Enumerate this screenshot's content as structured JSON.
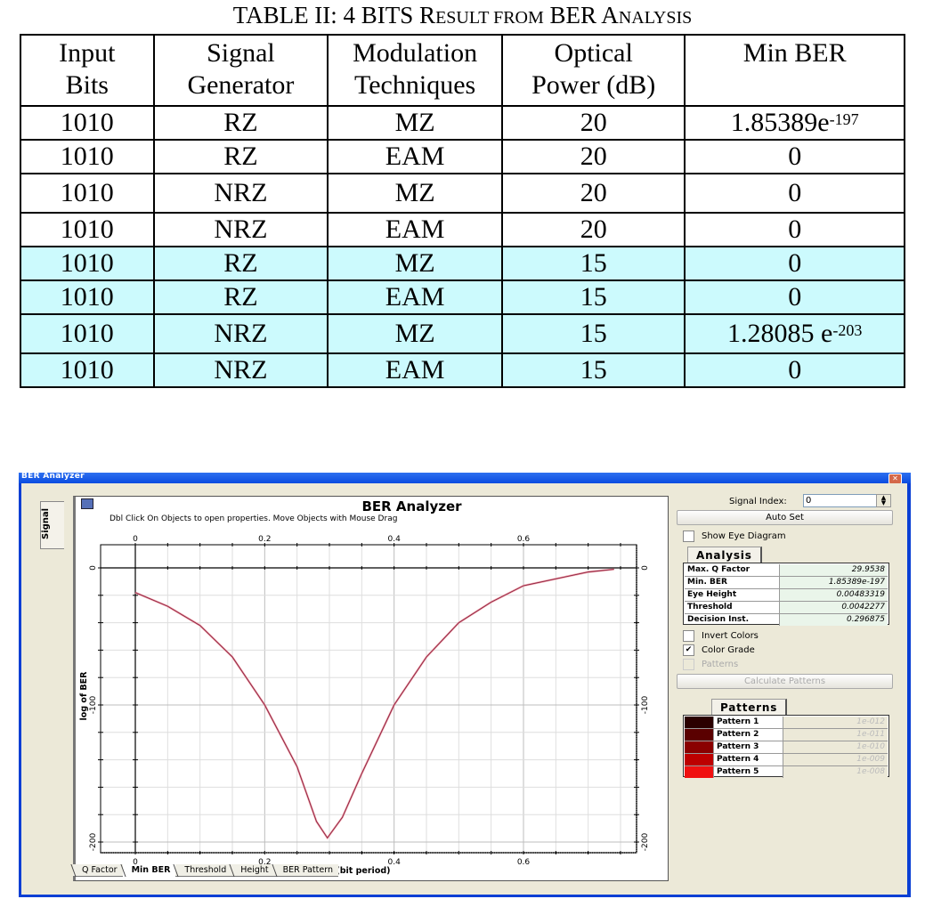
{
  "table": {
    "title_prefix": "TABLE II:  4 BITS R",
    "title_sc1": "ESULT FROM",
    "title_mid": " BER A",
    "title_sc2": "NALYSIS",
    "headers": [
      [
        "Input",
        "Bits"
      ],
      [
        "Signal",
        "Generator"
      ],
      [
        "Modulation",
        "Techniques"
      ],
      [
        "Optical",
        "Power (dB)"
      ],
      [
        "Min BER",
        ""
      ]
    ],
    "rows": [
      {
        "bits": "1010",
        "gen": "RZ",
        "mod": "MZ",
        "power": "20",
        "ber_base": "1.85389e",
        "ber_exp": "-197",
        "highlight": false
      },
      {
        "bits": "1010",
        "gen": "RZ",
        "mod": "EAM",
        "power": "20",
        "ber_base": "0",
        "ber_exp": "",
        "highlight": false
      },
      {
        "bits": "1010",
        "gen": "NRZ",
        "mod": "MZ",
        "power": "20",
        "ber_base": "0",
        "ber_exp": "",
        "highlight": false
      },
      {
        "bits": "1010",
        "gen": "NRZ",
        "mod": "EAM",
        "power": "20",
        "ber_base": "0",
        "ber_exp": "",
        "highlight": false
      },
      {
        "bits": "1010",
        "gen": "RZ",
        "mod": "MZ",
        "power": "15",
        "ber_base": "0",
        "ber_exp": "",
        "highlight": true
      },
      {
        "bits": "1010",
        "gen": "RZ",
        "mod": "EAM",
        "power": "15",
        "ber_base": "0",
        "ber_exp": "",
        "highlight": true
      },
      {
        "bits": "1010",
        "gen": "NRZ",
        "mod": "MZ",
        "power": "15",
        "ber_base": "1.28085 e",
        "ber_exp": "-203",
        "highlight": true
      },
      {
        "bits": "1010",
        "gen": "NRZ",
        "mod": "EAM",
        "power": "15",
        "ber_base": "0",
        "ber_exp": "",
        "highlight": true
      }
    ],
    "highlight_color": "#ccfafd"
  },
  "window": {
    "title": "BER Analyzer",
    "close_icon": "close-icon",
    "side_tab": "Signal",
    "graph": {
      "title": "BER Analyzer",
      "hint": "Dbl Click On Objects to open properties.  Move Objects with Mouse Drag",
      "xlabel": "Time (bit period)",
      "ylabel": "log of BER",
      "x_ticks": [
        "0",
        "0.2",
        "0.4",
        "0.6"
      ],
      "y_ticks": [
        "0",
        "-100",
        "-200"
      ]
    },
    "bottom_tabs": [
      "Q Factor",
      "Min BER",
      "Threshold",
      "Height",
      "BER Pattern"
    ],
    "active_tab": "Min BER",
    "signal_index_label": "Signal Index:",
    "signal_index_value": "0",
    "auto_set": "Auto Set",
    "show_eye_diagram": "Show Eye Diagram",
    "analysis_tab": "Analysis",
    "analysis": [
      {
        "k": "Max. Q Factor",
        "v": "29.9538"
      },
      {
        "k": "Min. BER",
        "v": "1.85389e-197"
      },
      {
        "k": "Eye Height",
        "v": "0.00483319"
      },
      {
        "k": "Threshold",
        "v": "0.0042277"
      },
      {
        "k": "Decision Inst.",
        "v": "0.296875"
      }
    ],
    "invert_colors": "Invert Colors",
    "color_grade": "Color Grade",
    "color_grade_checked": "✔",
    "patterns_check": "Patterns",
    "calculate_patterns": "Calculate Patterns",
    "patterns_tab": "Patterns",
    "patterns": [
      {
        "k": "Pattern 1",
        "v": "1e-012",
        "color": "#2a0000"
      },
      {
        "k": "Pattern 2",
        "v": "1e-011",
        "color": "#5a0000"
      },
      {
        "k": "Pattern 3",
        "v": "1e-010",
        "color": "#8a0000"
      },
      {
        "k": "Pattern 4",
        "v": "1e-009",
        "color": "#bd0000"
      },
      {
        "k": "Pattern 5",
        "v": "1e-008",
        "color": "#f01010"
      }
    ]
  },
  "chart_data": {
    "type": "line",
    "title": "BER Analyzer",
    "xlabel": "Time (bit period)",
    "ylabel": "log of BER",
    "xlim": [
      0,
      0.75
    ],
    "ylim": [
      -200,
      0
    ],
    "grid": true,
    "series": [
      {
        "name": "Min BER",
        "color": "#c0303a",
        "x": [
          0,
          0.05,
          0.1,
          0.15,
          0.2,
          0.25,
          0.28,
          0.296875,
          0.32,
          0.35,
          0.4,
          0.45,
          0.5,
          0.55,
          0.6,
          0.65,
          0.7,
          0.74
        ],
        "y": [
          -18,
          -28,
          -42,
          -65,
          -100,
          -145,
          -185,
          -197,
          -182,
          -150,
          -100,
          -65,
          -40,
          -25,
          -13,
          -8,
          -3,
          -1
        ]
      }
    ]
  }
}
